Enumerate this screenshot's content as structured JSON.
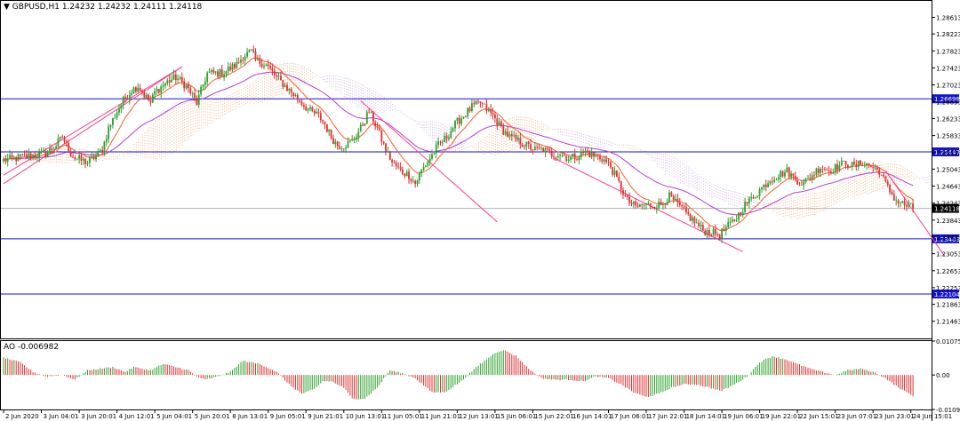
{
  "header": {
    "menu_glyph": "▼",
    "symbol_line": "GBPUSD,H1  1.24232 1.24232 1.24111 1.24118",
    "ao_label": "AO -0.006982"
  },
  "colors": {
    "bull": "#2ca02c",
    "bear": "#e03030",
    "hline": "#1414d2",
    "price_line": "#b4b4b4",
    "trend": "#ff3c8c",
    "ema_fast": "#ff5a2a",
    "ma_slow": "#b43cd2",
    "cloud_bull": "#f5b98c",
    "cloud_bear": "#d7b4eb"
  },
  "chart_data": [
    {
      "type": "candlestick",
      "symbol": "GBPUSD",
      "timeframe": "H1",
      "ohlc_header": {
        "open": 1.24232,
        "high": 1.24232,
        "low": 1.24111,
        "close": 1.24118
      },
      "ylim": [
        1.2106,
        1.29
      ],
      "y_ticks": [
        "1.28613",
        "1.28223",
        "1.27823",
        "1.27423",
        "1.27023",
        "1.26633",
        "1.26233",
        "1.25833",
        "1.25433",
        "1.25043",
        "1.24643",
        "1.24243",
        "1.23843",
        "1.23453",
        "1.23053",
        "1.22653",
        "1.22253",
        "1.21863",
        "1.21463"
      ],
      "horizontal_levels": [
        {
          "value": 1.26698,
          "label": "1.26698"
        },
        {
          "value": 1.25447,
          "label": "1.25447"
        },
        {
          "value": 1.23403,
          "label": "1.23403"
        },
        {
          "value": 1.22104,
          "label": "1.22104"
        }
      ],
      "current_price": {
        "value": 1.24118,
        "label": "1.24118"
      },
      "x_labels": [
        "2 Jun 2020",
        "3 Jun 04:01",
        "3 Jun 20:01",
        "4 Jun 12:01",
        "5 Jun 04:01",
        "5 Jun 20:01",
        "8 Jun 13:01",
        "9 Jun 05:01",
        "9 Jun 21:01",
        "10 Jun 13:01",
        "11 Jun 05:01",
        "11 Jun 21:01",
        "12 Jun 13:01",
        "15 Jun 06:01",
        "15 Jun 22:01",
        "16 Jun 14:01",
        "17 Jun 06:01",
        "17 Jun 22:01",
        "18 Jun 14:01",
        "19 Jun 06:01",
        "19 Jun 22:01",
        "22 Jun 15:01",
        "23 Jun 07:01",
        "23 Jun 23:01",
        "24 Jun 15:01"
      ],
      "price_path": [
        [
          0,
          1.2525
        ],
        [
          12,
          1.2535
        ],
        [
          20,
          1.254
        ],
        [
          25,
          1.256
        ],
        [
          28,
          1.258
        ],
        [
          30,
          1.256
        ],
        [
          32,
          1.254
        ],
        [
          34,
          1.253
        ],
        [
          40,
          1.252
        ],
        [
          44,
          1.2535
        ],
        [
          47,
          1.255
        ],
        [
          50,
          1.26
        ],
        [
          54,
          1.264
        ],
        [
          57,
          1.2665
        ],
        [
          61,
          1.269
        ],
        [
          64,
          1.27
        ],
        [
          67,
          1.268
        ],
        [
          70,
          1.266
        ],
        [
          72,
          1.2685
        ],
        [
          78,
          1.271
        ],
        [
          82,
          1.272
        ],
        [
          87,
          1.27
        ],
        [
          92,
          1.266
        ],
        [
          97,
          1.273
        ],
        [
          104,
          1.273
        ],
        [
          111,
          1.275
        ],
        [
          114,
          1.277
        ],
        [
          118,
          1.278
        ],
        [
          120,
          1.276
        ],
        [
          125,
          1.275
        ],
        [
          130,
          1.272
        ],
        [
          134,
          1.27
        ],
        [
          138,
          1.268
        ],
        [
          142,
          1.266
        ],
        [
          146,
          1.264
        ],
        [
          150,
          1.263
        ],
        [
          153,
          1.261
        ],
        [
          156,
          1.258
        ],
        [
          159,
          1.256
        ],
        [
          162,
          1.256
        ],
        [
          166,
          1.257
        ],
        [
          170,
          1.26
        ],
        [
          174,
          1.264
        ],
        [
          178,
          1.26
        ],
        [
          181,
          1.256
        ],
        [
          185,
          1.252
        ],
        [
          189,
          1.25
        ],
        [
          193,
          1.249
        ],
        [
          196,
          1.247
        ],
        [
          199,
          1.25
        ],
        [
          203,
          1.253
        ],
        [
          207,
          1.256
        ],
        [
          211,
          1.258
        ],
        [
          215,
          1.261
        ],
        [
          219,
          1.263
        ],
        [
          223,
          1.265
        ],
        [
          227,
          1.266
        ],
        [
          229,
          1.265
        ],
        [
          233,
          1.263
        ],
        [
          237,
          1.26
        ],
        [
          241,
          1.258
        ],
        [
          245,
          1.257
        ],
        [
          249,
          1.256
        ],
        [
          253,
          1.255
        ],
        [
          257,
          1.255
        ],
        [
          261,
          1.254
        ],
        [
          265,
          1.254
        ],
        [
          269,
          1.253
        ],
        [
          273,
          1.2535
        ],
        [
          277,
          1.2545
        ],
        [
          281,
          1.2535
        ],
        [
          285,
          1.253
        ],
        [
          289,
          1.251
        ],
        [
          293,
          1.247
        ],
        [
          297,
          1.243
        ],
        [
          301,
          1.2415
        ],
        [
          305,
          1.242
        ],
        [
          309,
          1.242
        ],
        [
          313,
          1.242
        ],
        [
          317,
          1.244
        ],
        [
          321,
          1.242
        ],
        [
          325,
          1.24
        ],
        [
          329,
          1.238
        ],
        [
          333,
          1.236
        ],
        [
          337,
          1.2355
        ],
        [
          341,
          1.235
        ],
        [
          345,
          1.237
        ],
        [
          349,
          1.239
        ],
        [
          353,
          1.242
        ],
        [
          357,
          1.244
        ],
        [
          361,
          1.246
        ],
        [
          365,
          1.248
        ],
        [
          369,
          1.249
        ],
        [
          373,
          1.25
        ],
        [
          377,
          1.248
        ],
        [
          381,
          1.247
        ],
        [
          385,
          1.249
        ],
        [
          389,
          1.251
        ],
        [
          393,
          1.25
        ],
        [
          397,
          1.251
        ],
        [
          401,
          1.252
        ],
        [
          405,
          1.251
        ],
        [
          409,
          1.252
        ],
        [
          413,
          1.251
        ],
        [
          417,
          1.25
        ],
        [
          421,
          1.246
        ],
        [
          425,
          1.243
        ],
        [
          429,
          1.242
        ],
        [
          433,
          1.2412
        ]
      ],
      "trend_lines": [
        {
          "from": [
            0,
            1.247
          ],
          "to": [
            85,
            1.2745
          ]
        },
        {
          "from": [
            0,
            1.249
          ],
          "to": [
            85,
            1.2745
          ]
        },
        {
          "from": [
            170,
            1.2665
          ],
          "to": [
            235,
            1.238
          ]
        },
        {
          "from": [
            262,
            1.253
          ],
          "to": [
            352,
            1.231
          ]
        },
        {
          "from": [
            420,
            1.25
          ],
          "to": [
            448,
            1.23
          ]
        }
      ]
    },
    {
      "type": "bar",
      "name": "AO",
      "value_label": "AO -0.006982",
      "y_ticks": [
        "0.010751",
        "0.00",
        "-0.010929"
      ],
      "ylim": [
        -0.010929,
        0.010751
      ],
      "values_path": [
        [
          0,
          0.0055
        ],
        [
          8,
          0.004
        ],
        [
          14,
          0.001
        ],
        [
          20,
          -0.0005
        ],
        [
          28,
          0.0
        ],
        [
          34,
          -0.0015
        ],
        [
          40,
          0.0015
        ],
        [
          46,
          0.002
        ],
        [
          52,
          0.0025
        ],
        [
          58,
          0.001
        ],
        [
          62,
          0.0025
        ],
        [
          70,
          0.0015
        ],
        [
          76,
          0.0035
        ],
        [
          82,
          0.0025
        ],
        [
          88,
          0.0015
        ],
        [
          92,
          -0.0005
        ],
        [
          96,
          -0.0015
        ],
        [
          102,
          -0.0005
        ],
        [
          108,
          0.001
        ],
        [
          114,
          0.0045
        ],
        [
          122,
          0.0035
        ],
        [
          130,
          0.001
        ],
        [
          136,
          -0.003
        ],
        [
          142,
          -0.006
        ],
        [
          148,
          -0.0045
        ],
        [
          152,
          -0.002
        ],
        [
          156,
          -0.002
        ],
        [
          162,
          -0.004
        ],
        [
          166,
          -0.0075
        ],
        [
          172,
          -0.0075
        ],
        [
          178,
          -0.004
        ],
        [
          184,
          0.0015
        ],
        [
          190,
          0.0005
        ],
        [
          196,
          -0.001
        ],
        [
          204,
          -0.0055
        ],
        [
          210,
          -0.0055
        ],
        [
          218,
          -0.002
        ],
        [
          226,
          0.003
        ],
        [
          234,
          0.007
        ],
        [
          238,
          0.008
        ],
        [
          244,
          0.006
        ],
        [
          250,
          0.002
        ],
        [
          256,
          -0.001
        ],
        [
          262,
          -0.0015
        ],
        [
          270,
          -0.0015
        ],
        [
          276,
          -0.002
        ],
        [
          282,
          -0.0005
        ],
        [
          288,
          -0.001
        ],
        [
          294,
          -0.003
        ],
        [
          300,
          -0.0055
        ],
        [
          306,
          -0.007
        ],
        [
          312,
          -0.006
        ],
        [
          318,
          -0.004
        ],
        [
          324,
          -0.003
        ],
        [
          330,
          -0.003
        ],
        [
          336,
          -0.004
        ],
        [
          342,
          -0.005
        ],
        [
          348,
          -0.003
        ],
        [
          354,
          -0.0005
        ],
        [
          360,
          0.004
        ],
        [
          366,
          0.006
        ],
        [
          372,
          0.005
        ],
        [
          378,
          0.0035
        ],
        [
          384,
          0.002
        ],
        [
          390,
          0.001
        ],
        [
          396,
          0.0
        ],
        [
          402,
          0.0015
        ],
        [
          408,
          0.002
        ],
        [
          414,
          0.001
        ],
        [
          420,
          -0.001
        ],
        [
          426,
          -0.004
        ],
        [
          430,
          -0.0055
        ],
        [
          434,
          -0.007
        ]
      ]
    }
  ]
}
